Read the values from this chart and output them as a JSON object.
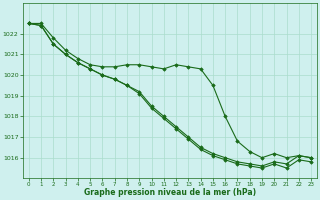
{
  "hours": [
    0,
    1,
    2,
    3,
    4,
    5,
    6,
    7,
    8,
    9,
    10,
    11,
    12,
    13,
    14,
    15,
    16,
    17,
    18,
    19,
    20,
    21,
    22,
    23
  ],
  "series1": [
    1022.5,
    1022.5,
    1021.8,
    1021.2,
    1020.8,
    1020.5,
    1020.4,
    1020.4,
    1020.5,
    1020.5,
    1020.4,
    1020.3,
    1020.5,
    1020.4,
    1020.3,
    1019.5,
    1018.0,
    1016.8,
    1016.3,
    1016.0,
    1016.2,
    1016.0,
    1016.1,
    1016.0
  ],
  "series2": [
    1022.5,
    1022.4,
    1021.5,
    1021.0,
    1020.6,
    1020.3,
    1020.0,
    1019.8,
    1019.5,
    1019.2,
    1018.5,
    1018.0,
    1017.5,
    1017.0,
    1016.5,
    1016.2,
    1016.0,
    1015.8,
    1015.7,
    1015.6,
    1015.8,
    1015.7,
    1016.1,
    1016.0
  ],
  "series3": [
    1022.5,
    1022.4,
    1021.5,
    1021.0,
    1020.6,
    1020.3,
    1020.0,
    1019.8,
    1019.5,
    1019.1,
    1018.4,
    1017.9,
    1017.4,
    1016.9,
    1016.4,
    1016.1,
    1015.9,
    1015.7,
    1015.6,
    1015.5,
    1015.7,
    1015.5,
    1015.9,
    1015.8
  ],
  "line_color": "#1a6b1a",
  "marker_color": "#1a6b1a",
  "bg_color": "#cff0ee",
  "grid_color": "#aaddcc",
  "text_color": "#1a6b1a",
  "xlabel": "Graphe pression niveau de la mer (hPa)",
  "ylim": [
    1015.0,
    1023.5
  ],
  "yticks": [
    1016,
    1017,
    1018,
    1019,
    1020,
    1021,
    1022
  ],
  "xlim": [
    -0.5,
    23.5
  ]
}
